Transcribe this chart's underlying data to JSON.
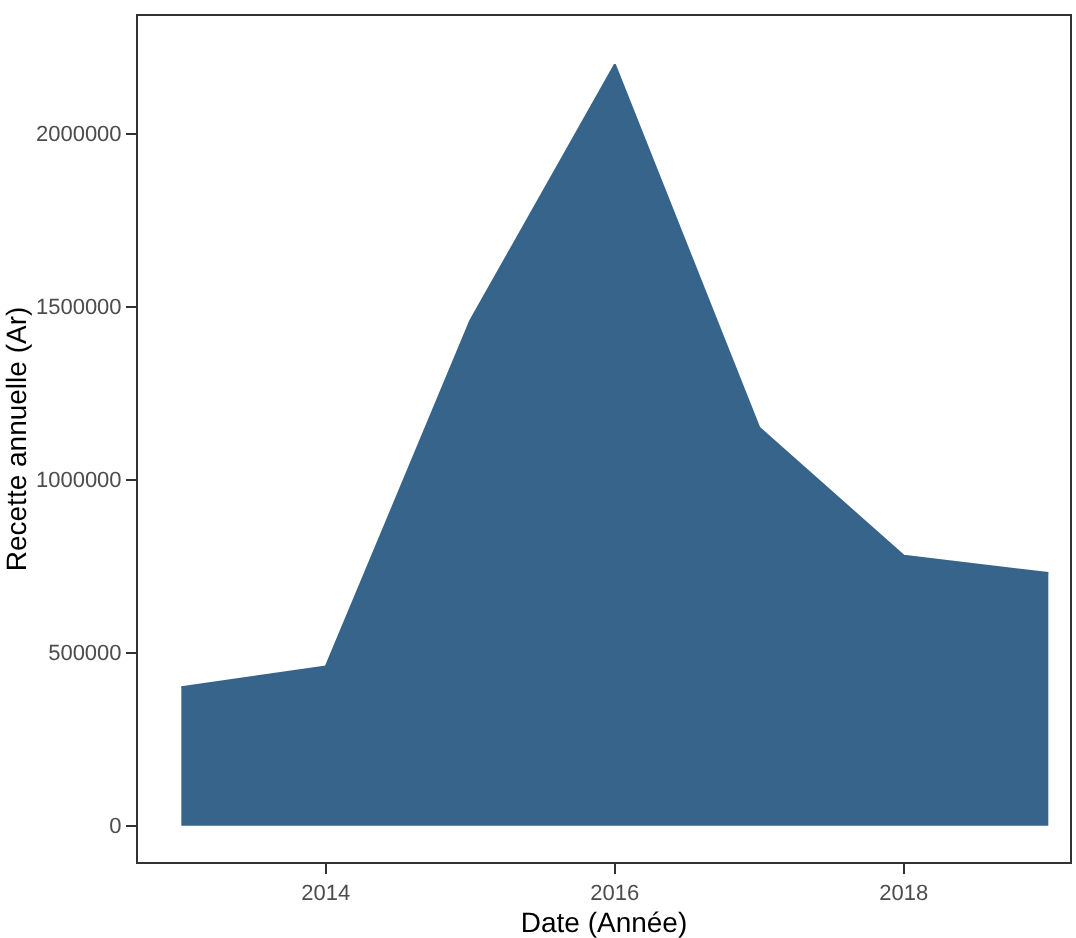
{
  "chart_data": {
    "type": "area",
    "xlabel": "Date (Année)",
    "ylabel": "Recette annuelle (Ar)",
    "x": [
      2013,
      2014,
      2015,
      2016,
      2017,
      2018,
      2019
    ],
    "series": [
      {
        "color": "#36648b",
        "values": [
          400000,
          460000,
          1460000,
          2200000,
          1150000,
          780000,
          730000
        ]
      }
    ],
    "xlim": [
      2012.7,
      2019.15
    ],
    "xticks": [
      2014,
      2016,
      2018
    ],
    "ylim": [
      -105000,
      2340000
    ],
    "yticks": [
      0,
      500000,
      1000000,
      1500000,
      2000000
    ],
    "legend": false
  }
}
